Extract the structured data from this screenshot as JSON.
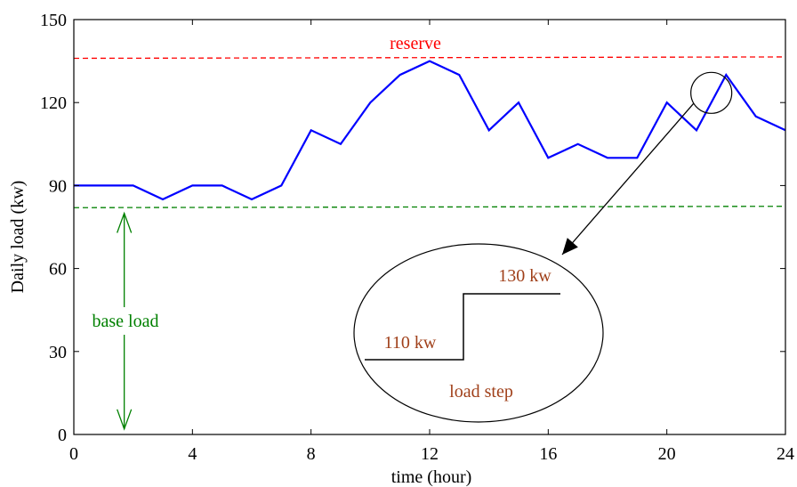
{
  "chart_data": {
    "type": "line",
    "title": "",
    "xlabel": "time (hour)",
    "ylabel": "Daily load (kw)",
    "xlim": [
      0,
      24
    ],
    "ylim": [
      0,
      150
    ],
    "xticks": [
      0,
      4,
      8,
      12,
      16,
      20,
      24
    ],
    "yticks": [
      0,
      30,
      60,
      90,
      120,
      150
    ],
    "xtick_labels": [
      "0",
      "4",
      "8",
      "12",
      "16",
      "20",
      "24"
    ],
    "ytick_labels": [
      "0",
      "30",
      "60",
      "90",
      "120",
      "150"
    ],
    "grid": false,
    "series": [
      {
        "color": "#0000ff",
        "x": [
          0,
          1,
          2,
          3,
          4,
          5,
          6,
          7,
          8,
          9,
          10,
          11,
          12,
          13,
          14,
          15,
          16,
          17,
          18,
          19,
          20,
          21,
          22,
          23,
          24
        ],
        "y": [
          90,
          90,
          90,
          85,
          90,
          90,
          85,
          90,
          110,
          105,
          120,
          130,
          135,
          130,
          110,
          120,
          100,
          105,
          100,
          100,
          120,
          110,
          130,
          115,
          110
        ]
      }
    ],
    "reference_lines": [
      {
        "label": "reserve",
        "y_start": 136,
        "y_end": 136.5,
        "color": "#ff0000",
        "style": "dashed"
      },
      {
        "label": "base load",
        "y_start": 82,
        "y_end": 82.5,
        "color": "#008000",
        "style": "dashed"
      }
    ],
    "annotations": {
      "reserve_label": "reserve",
      "base_load_label": "base load",
      "base_load_arrow_x": 1.7,
      "zoom_circle_center": [
        21.5,
        123.5
      ],
      "inset": {
        "low_label": "110 kw",
        "high_label": "130 kw",
        "caption": "load step"
      }
    },
    "colors": {
      "line": "#0000ff",
      "reserve": "#ff0000",
      "base": "#008000",
      "inset_text": "#a0401a",
      "axes": "#000000"
    }
  }
}
